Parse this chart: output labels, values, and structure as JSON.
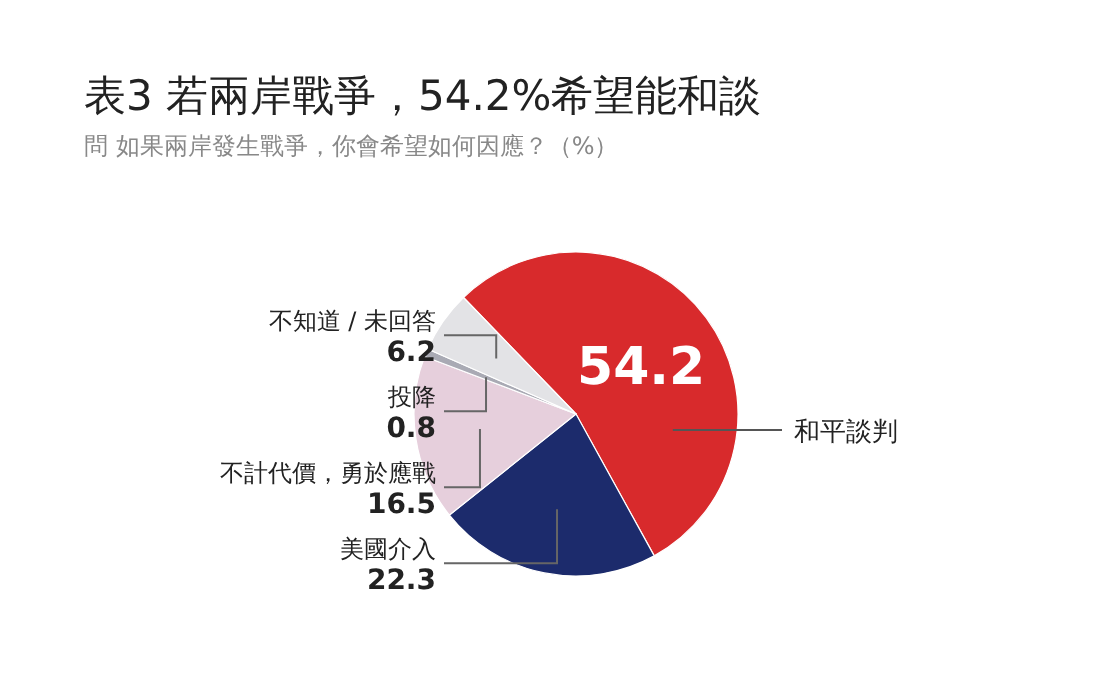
{
  "chart_data": {
    "type": "pie",
    "title": "表3 若兩岸戰爭，54.2%希望能和談",
    "subtitle": "問 如果兩岸發生戰爭，你會希望如何因應？（%）",
    "categories": [
      "和平談判",
      "美國介入",
      "不計代價，勇於應戰",
      "投降",
      "不知道 / 未回答"
    ],
    "values": [
      54.2,
      22.3,
      16.5,
      0.8,
      6.2
    ],
    "colors": [
      "#d82a2c",
      "#1c2b6c",
      "#e6cfdc",
      "#a9aab4",
      "#e3e3e6"
    ],
    "data_labels": true
  }
}
